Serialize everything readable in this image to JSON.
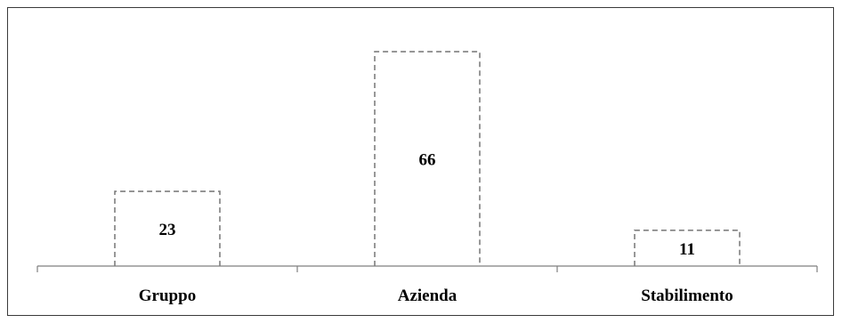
{
  "chart_data": {
    "type": "bar",
    "categories": [
      "Gruppo",
      "Azienda",
      "Stabilimento"
    ],
    "values": [
      23,
      66,
      11
    ],
    "title": "",
    "xlabel": "",
    "ylabel": "",
    "ylim": [
      0,
      70
    ],
    "grid": false,
    "legend": "none",
    "bar_style": "dashed-outline",
    "colors": {
      "bar_stroke": "#7f7f7f",
      "axis": "#7f7f7f",
      "text": "#000000"
    }
  }
}
